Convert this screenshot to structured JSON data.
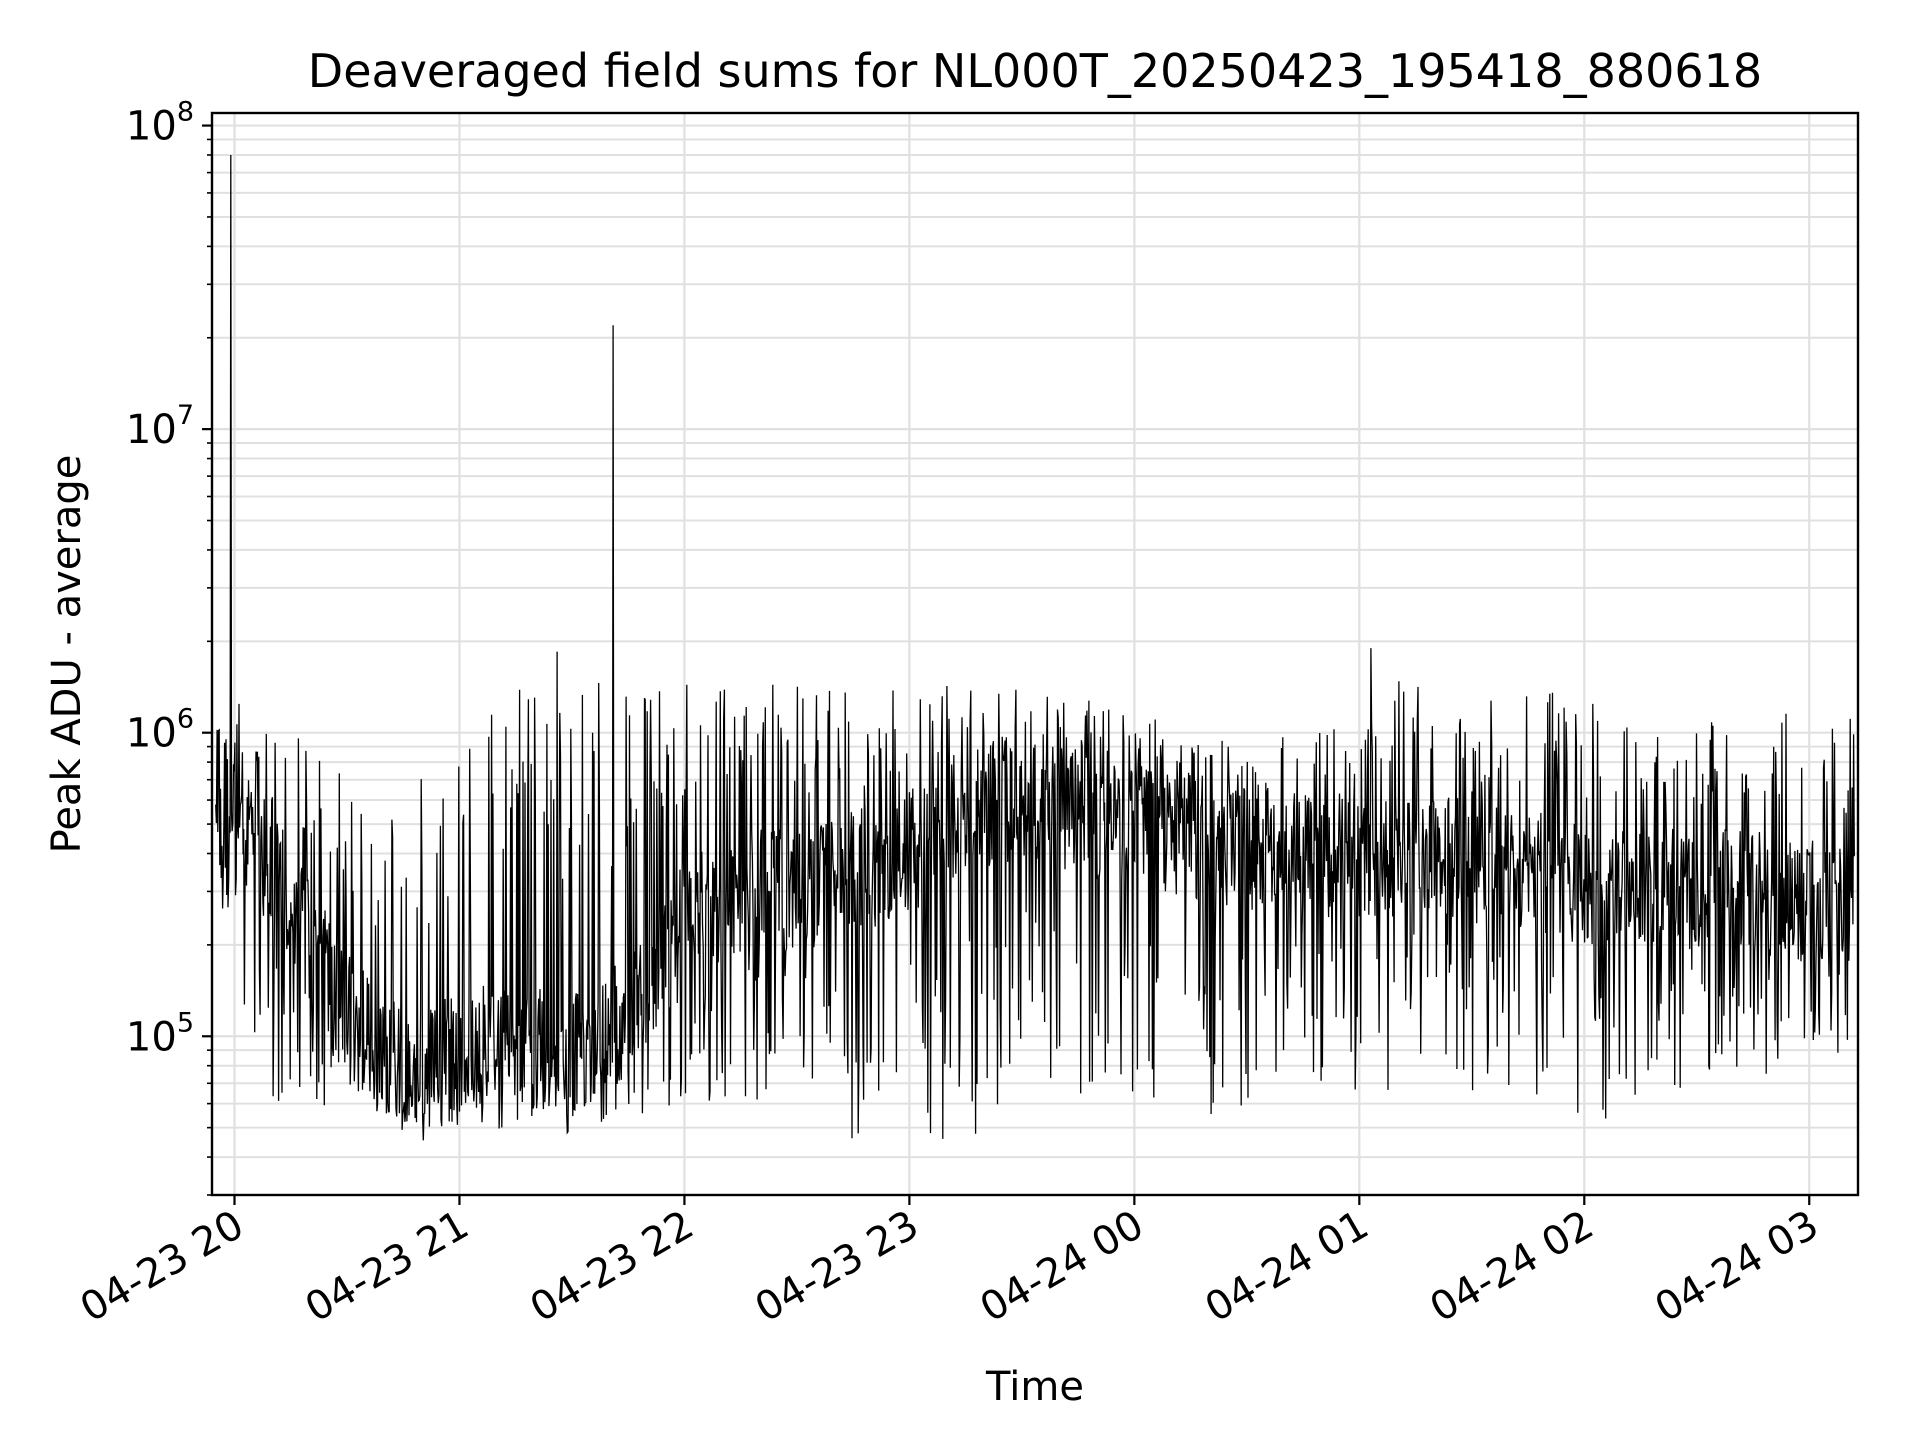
{
  "chart_data": {
    "type": "line",
    "title": "Deaveraged field sums for NL000T_20250423_195418_880618",
    "xlabel": "Time",
    "ylabel": "Peak ADU - average",
    "xscale": "time",
    "yscale": "log",
    "grid": true,
    "legend": "none",
    "line_color": "#000000",
    "grid_color": "#e0e0e0",
    "xlim": [
      "2025-04-23 19:54",
      "2025-04-24 03:13"
    ],
    "ylim": [
      30000,
      110000000
    ],
    "x_tick_labels": [
      "04-23 20",
      "04-23 21",
      "04-23 22",
      "04-23 23",
      "04-24 00",
      "04-24 01",
      "04-24 02",
      "04-24 03"
    ],
    "y_tick_labels": [
      {
        "base": "10",
        "exponent": "5"
      },
      {
        "base": "10",
        "exponent": "6"
      },
      {
        "base": "10",
        "exponent": "7"
      },
      {
        "base": "10",
        "exponent": "8"
      }
    ],
    "series": [
      {
        "x": [
          "2025-04-23 19:55",
          "2025-04-23 19:58",
          "2025-04-23 20:00",
          "2025-04-23 20:05",
          "2025-04-23 20:10",
          "2025-04-23 20:20",
          "2025-04-23 20:30",
          "2025-04-23 20:40",
          "2025-04-23 20:50",
          "2025-04-23 21:00",
          "2025-04-23 21:10",
          "2025-04-23 21:20",
          "2025-04-23 21:30",
          "2025-04-23 21:40",
          "2025-04-23 21:50",
          "2025-04-23 22:00",
          "2025-04-23 22:15",
          "2025-04-23 22:30",
          "2025-04-23 22:45",
          "2025-04-23 23:00",
          "2025-04-23 23:15",
          "2025-04-23 23:30",
          "2025-04-23 23:45",
          "2025-04-24 00:00",
          "2025-04-24 00:15",
          "2025-04-24 00:30",
          "2025-04-24 00:45",
          "2025-04-24 01:00",
          "2025-04-24 01:15",
          "2025-04-24 01:30",
          "2025-04-24 01:45",
          "2025-04-24 02:00",
          "2025-04-24 02:15",
          "2025-04-24 02:30",
          "2025-04-24 02:45",
          "2025-04-24 03:00",
          "2025-04-24 03:12"
        ],
        "y_typical": [
          400000,
          450000,
          500000,
          420000,
          380000,
          200000,
          120000,
          90000,
          80000,
          85000,
          95000,
          90000,
          85000,
          100000,
          150000,
          250000,
          300000,
          300000,
          350000,
          400000,
          550000,
          600000,
          550000,
          500000,
          450000,
          420000,
          400000,
          380000,
          400000,
          380000,
          350000,
          320000,
          300000,
          300000,
          300000,
          280000,
          300000
        ],
        "y_high": [
          1000000,
          1400000,
          1300000,
          1300000,
          1000000,
          950000,
          700000,
          500000,
          750000,
          1450000,
          1400000,
          1400000,
          1800000,
          1500000,
          1400000,
          1500000,
          1450000,
          1450000,
          1350000,
          1450000,
          1500000,
          1400000,
          1300000,
          1200000,
          1100000,
          900000,
          1100000,
          1000000,
          1900000,
          1200000,
          1600000,
          1300000,
          1100000,
          1100000,
          1150000,
          1350000,
          1100000
        ],
        "y_low": [
          250000,
          200000,
          180000,
          70000,
          60000,
          60000,
          55000,
          50000,
          45000,
          50000,
          48000,
          47000,
          45000,
          52000,
          55000,
          55000,
          60000,
          48000,
          45000,
          45000,
          45000,
          60000,
          60000,
          65000,
          50000,
          60000,
          70000,
          60000,
          70000,
          65000,
          60000,
          55000,
          50000,
          70000,
          70000,
          80000,
          90000
        ]
      }
    ],
    "spikes": [
      {
        "x": "2025-04-23 19:59",
        "y": 80000000
      },
      {
        "x": "2025-04-23 21:41",
        "y": 22000000
      },
      {
        "x": "2025-04-23 21:26",
        "y": 1850000
      },
      {
        "x": "2025-04-24 01:03",
        "y": 1900000
      }
    ]
  }
}
